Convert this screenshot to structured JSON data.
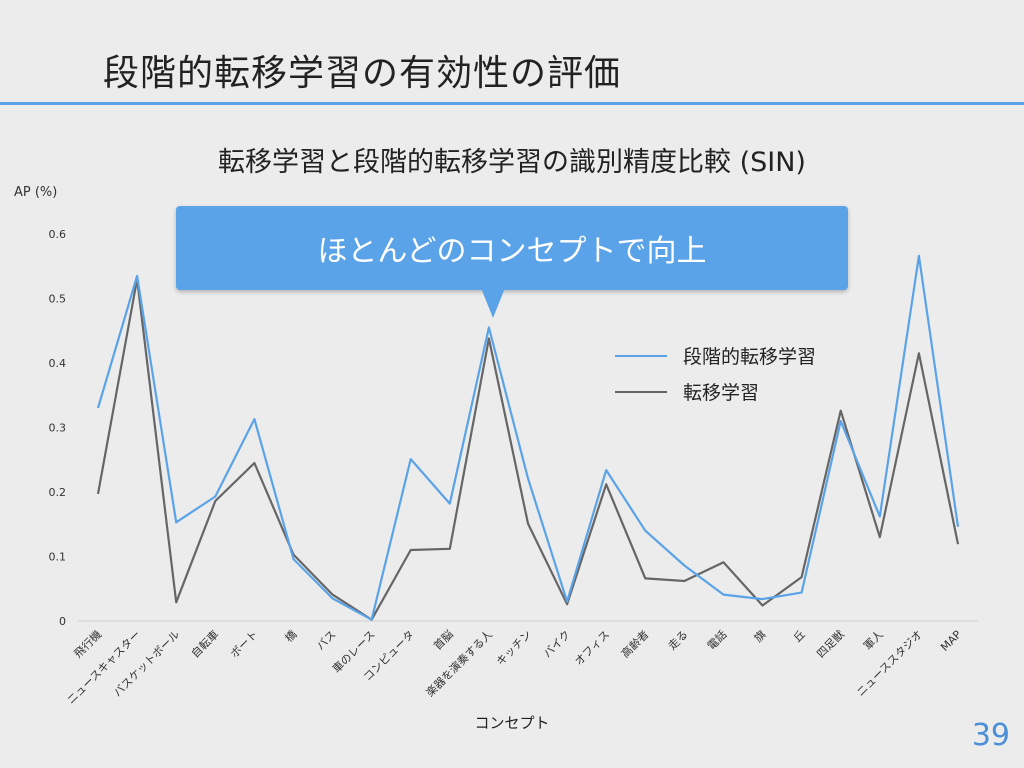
{
  "slide": {
    "title": "段階的転移学習の有効性の評価",
    "page_number": "39",
    "accent_color": "#5aa3e8"
  },
  "callout": {
    "text": "ほとんどのコンセプトで向上",
    "color": "#5aa3e8"
  },
  "chart_data": {
    "type": "line",
    "title": "転移学習と段階的転移学習の識別精度比較 (SIN)",
    "xlabel": "コンセプト",
    "ylabel": "AP (%)",
    "ylim": [
      0,
      0.6
    ],
    "yticks": [
      "0",
      "0.1",
      "0.2",
      "0.3",
      "0.4",
      "0.5",
      "0.6"
    ],
    "grid": false,
    "legend_position": "right-middle",
    "categories": [
      "飛行機",
      "ニュースキャスター",
      "バスケットボール",
      "自転車",
      "ボート",
      "橋",
      "バス",
      "車のレース",
      "コンピュータ",
      "首脳",
      "楽器を演奏する人",
      "キッチン",
      "バイク",
      "オフィス",
      "高齢者",
      "走る",
      "電話",
      "旗",
      "丘",
      "四足獣",
      "軍人",
      "ニューススタジオ",
      "MAP"
    ],
    "series": [
      {
        "name": "段階的転移学習",
        "color": "#5aa3e8",
        "values": [
          0.33,
          0.535,
          0.153,
          0.193,
          0.313,
          0.096,
          0.035,
          0.002,
          0.251,
          0.182,
          0.455,
          0.221,
          0.03,
          0.234,
          0.14,
          0.086,
          0.041,
          0.034,
          0.044,
          0.31,
          0.162,
          0.566,
          0.146
        ]
      },
      {
        "name": "転移学習",
        "color": "#666666",
        "values": [
          0.197,
          0.53,
          0.029,
          0.186,
          0.245,
          0.103,
          0.041,
          0.002,
          0.11,
          0.112,
          0.438,
          0.151,
          0.026,
          0.212,
          0.066,
          0.062,
          0.091,
          0.024,
          0.068,
          0.326,
          0.13,
          0.415,
          0.119
        ]
      }
    ]
  }
}
